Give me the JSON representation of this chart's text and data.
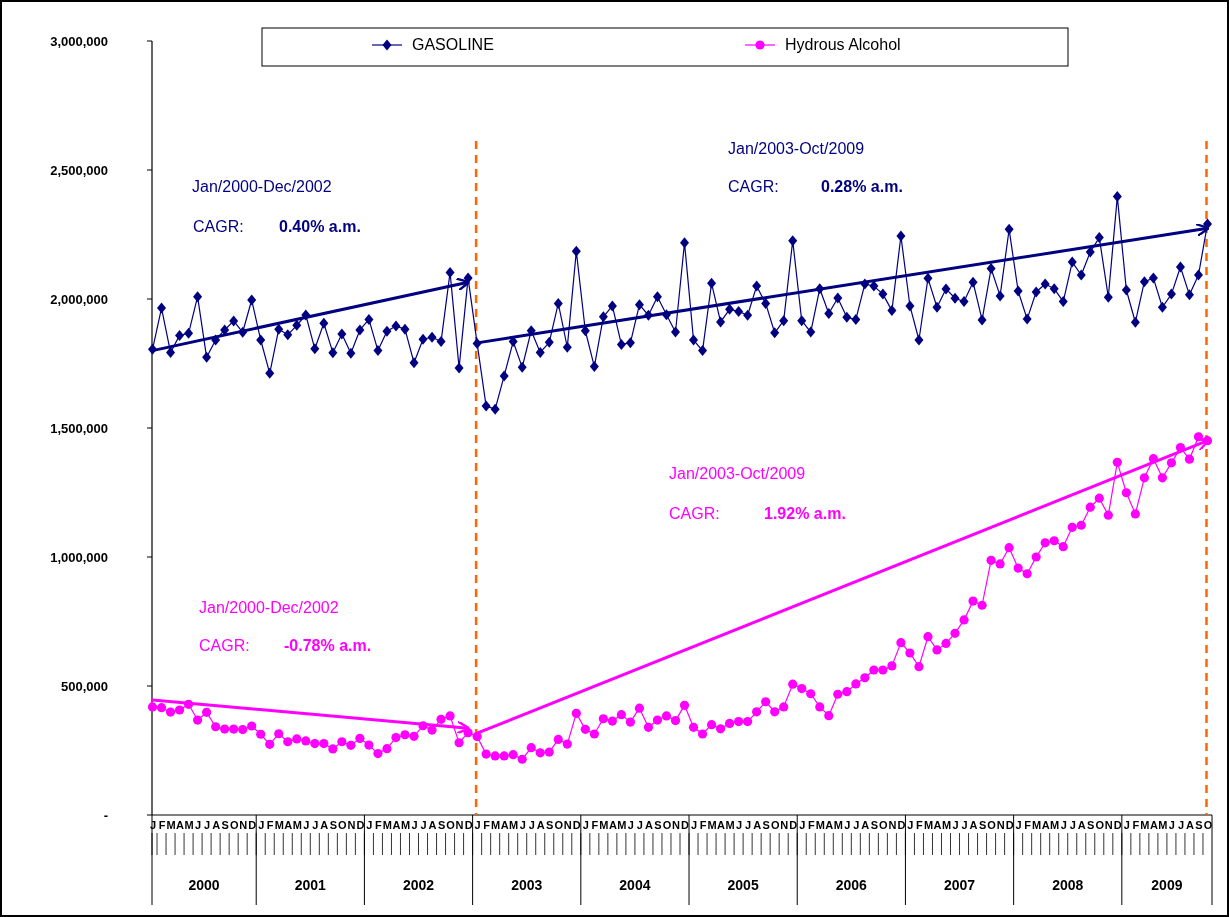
{
  "chart_data": {
    "type": "line",
    "categories": [
      "J",
      "F",
      "M",
      "A",
      "M",
      "J",
      "J",
      "A",
      "S",
      "O",
      "N",
      "D",
      "J",
      "F",
      "M",
      "A",
      "M",
      "J",
      "J",
      "A",
      "S",
      "O",
      "N",
      "D",
      "J",
      "F",
      "M",
      "A",
      "M",
      "J",
      "J",
      "A",
      "S",
      "O",
      "N",
      "D",
      "J",
      "F",
      "M",
      "A",
      "M",
      "J",
      "J",
      "A",
      "S",
      "O",
      "N",
      "D",
      "J",
      "F",
      "M",
      "A",
      "M",
      "J",
      "J",
      "A",
      "S",
      "O",
      "N",
      "D",
      "J",
      "F",
      "M",
      "A",
      "M",
      "J",
      "J",
      "A",
      "S",
      "O",
      "N",
      "D",
      "J",
      "F",
      "M",
      "A",
      "M",
      "J",
      "J",
      "A",
      "S",
      "O",
      "N",
      "D",
      "J",
      "F",
      "M",
      "A",
      "M",
      "J",
      "J",
      "A",
      "S",
      "O",
      "N",
      "D",
      "J",
      "F",
      "M",
      "A",
      "M",
      "J",
      "J",
      "A",
      "S",
      "O",
      "N",
      "D",
      "J",
      "F",
      "M",
      "A",
      "M",
      "J",
      "J",
      "A",
      "S",
      "O"
    ],
    "series": [
      {
        "name": "GASOLINE",
        "color": "#000080",
        "marker": "diamond",
        "values": [
          1805000,
          1965000,
          1793000,
          1859000,
          1867000,
          2009000,
          1774000,
          1841000,
          1880000,
          1915000,
          1871000,
          1996000,
          1841000,
          1712000,
          1883000,
          1861000,
          1898000,
          1938000,
          1807000,
          1906000,
          1792000,
          1864000,
          1790000,
          1880000,
          1921000,
          1800000,
          1875000,
          1895000,
          1883000,
          1753000,
          1844000,
          1852000,
          1835000,
          2103000,
          1733000,
          2081000,
          1828000,
          1585000,
          1573000,
          1702000,
          1835000,
          1735000,
          1877000,
          1793000,
          1832000,
          1983000,
          1813000,
          2185000,
          1877000,
          1738000,
          1931000,
          1973000,
          1824000,
          1830000,
          1978000,
          1937000,
          2009000,
          1939000,
          1872000,
          2218000,
          1841000,
          1800000,
          2061000,
          1911000,
          1960000,
          1952000,
          1937000,
          2050000,
          1983000,
          1869000,
          1916000,
          2226000,
          1916000,
          1872000,
          2040000,
          1944000,
          2004000,
          1929000,
          1921000,
          2058000,
          2050000,
          2019000,
          1955000,
          2244000,
          1973000,
          1841000,
          2080000,
          1968000,
          2039000,
          2003000,
          1990000,
          2065000,
          1919000,
          2118000,
          2012000,
          2270000,
          2031000,
          1922000,
          2027000,
          2058000,
          2040000,
          1990000,
          2143000,
          2093000,
          2182000,
          2238000,
          2007000,
          2397000,
          2035000,
          1910000,
          2067000,
          2081000,
          1968000,
          2019000,
          2124000,
          2016000,
          2093000,
          2291000
        ]
      },
      {
        "name": "Hydrous Alcohol",
        "color": "#ff00ff",
        "marker": "circle",
        "values": [
          419000,
          416000,
          399000,
          407000,
          429000,
          368000,
          398000,
          342000,
          333000,
          333000,
          331000,
          345000,
          313000,
          274000,
          315000,
          284000,
          295000,
          287000,
          277000,
          277000,
          256000,
          284000,
          270000,
          297000,
          271000,
          238000,
          257000,
          300000,
          311000,
          305000,
          346000,
          329000,
          371000,
          384000,
          280000,
          319000,
          304000,
          236000,
          229000,
          229000,
          234000,
          216000,
          261000,
          241000,
          244000,
          293000,
          275000,
          394000,
          332000,
          314000,
          373000,
          364000,
          389000,
          360000,
          414000,
          340000,
          368000,
          384000,
          366000,
          425000,
          340000,
          314000,
          350000,
          334000,
          355000,
          362000,
          362000,
          400000,
          439000,
          400000,
          419000,
          507000,
          490000,
          470000,
          419000,
          385000,
          468000,
          478000,
          508000,
          532000,
          562000,
          562000,
          578000,
          668000,
          628000,
          575000,
          691000,
          640000,
          665000,
          704000,
          756000,
          829000,
          813000,
          987000,
          973000,
          1036000,
          957000,
          935000,
          1000000,
          1055000,
          1063000,
          1040000,
          1115000,
          1123000,
          1193000,
          1228000,
          1162000,
          1367000,
          1249000,
          1167000,
          1307000,
          1381000,
          1307000,
          1365000,
          1424000,
          1379000,
          1466000,
          1451000
        ]
      },
      {
        "type": "line",
        "color": "#000080",
        "marker": "none",
        "values": [
          1800000,
          null,
          null,
          null,
          null,
          null,
          null,
          null,
          null,
          null,
          null,
          null,
          null,
          null,
          null,
          null,
          null,
          null,
          null,
          null,
          null,
          null,
          null,
          null,
          null,
          null,
          null,
          null,
          null,
          null,
          null,
          null,
          null,
          null,
          null,
          2065000,
          null,
          null,
          null,
          null,
          null,
          null,
          null,
          null,
          null,
          null,
          null,
          null,
          null,
          null,
          null,
          null,
          null,
          null,
          null,
          null,
          null,
          null,
          null,
          null,
          null,
          null,
          null,
          null,
          null,
          null,
          null,
          null,
          null,
          null,
          null,
          null,
          null,
          null,
          null,
          null,
          null,
          null,
          null,
          null,
          null,
          null,
          null,
          null,
          null,
          null,
          null,
          null,
          null,
          null,
          null,
          null,
          null,
          null,
          null,
          null,
          null,
          null,
          null,
          null,
          null,
          null,
          null,
          null,
          null,
          null,
          null,
          null,
          null,
          null,
          null,
          null,
          null,
          null,
          null,
          null,
          null,
          null
        ]
      },
      {
        "type": "line",
        "color": "#000080",
        "marker": "none",
        "values": [
          null,
          null,
          null,
          null,
          null,
          null,
          null,
          null,
          null,
          null,
          null,
          null,
          null,
          null,
          null,
          null,
          null,
          null,
          null,
          null,
          null,
          null,
          null,
          null,
          null,
          null,
          null,
          null,
          null,
          null,
          null,
          null,
          null,
          null,
          null,
          null,
          1830000,
          null,
          null,
          null,
          null,
          null,
          null,
          null,
          null,
          null,
          null,
          null,
          null,
          null,
          null,
          null,
          null,
          null,
          null,
          null,
          null,
          null,
          null,
          null,
          null,
          null,
          null,
          null,
          null,
          null,
          null,
          null,
          null,
          null,
          null,
          null,
          null,
          null,
          null,
          null,
          null,
          null,
          null,
          null,
          null,
          null,
          null,
          null,
          null,
          null,
          null,
          null,
          null,
          null,
          null,
          null,
          null,
          null,
          null,
          null,
          null,
          null,
          null,
          null,
          null,
          null,
          null,
          null,
          null,
          null,
          null,
          null,
          null,
          null,
          null,
          null,
          null,
          null,
          null,
          null,
          null,
          2274000
        ]
      },
      {
        "type": "line",
        "color": "#ff00ff",
        "marker": "none",
        "values": [
          446000,
          null,
          null,
          null,
          null,
          null,
          null,
          null,
          null,
          null,
          null,
          null,
          null,
          null,
          null,
          null,
          null,
          null,
          null,
          null,
          null,
          null,
          null,
          null,
          null,
          null,
          null,
          null,
          null,
          null,
          null,
          null,
          null,
          null,
          null,
          336000,
          null,
          null,
          null,
          null,
          null,
          null,
          null,
          null,
          null,
          null,
          null,
          null,
          null,
          null,
          null,
          null,
          null,
          null,
          null,
          null,
          null,
          null,
          null,
          null,
          null,
          null,
          null,
          null,
          null,
          null,
          null,
          null,
          null,
          null,
          null,
          null,
          null,
          null,
          null,
          null,
          null,
          null,
          null,
          null,
          null,
          null,
          null,
          null,
          null,
          null,
          null,
          null,
          null,
          null,
          null,
          null,
          null,
          null,
          null,
          null,
          null,
          null,
          null,
          null,
          null,
          null,
          null,
          null,
          null,
          null,
          null,
          null,
          null,
          null,
          null,
          null,
          null,
          null,
          null,
          null,
          null,
          null
        ]
      },
      {
        "type": "line",
        "color": "#ff00ff",
        "marker": "none",
        "values": [
          null,
          null,
          null,
          null,
          null,
          null,
          null,
          null,
          null,
          null,
          null,
          null,
          null,
          null,
          null,
          null,
          null,
          null,
          null,
          null,
          null,
          null,
          null,
          null,
          null,
          null,
          null,
          null,
          null,
          null,
          null,
          null,
          null,
          null,
          null,
          null,
          317000,
          null,
          null,
          null,
          null,
          null,
          null,
          null,
          null,
          null,
          null,
          null,
          null,
          null,
          null,
          null,
          null,
          null,
          null,
          null,
          null,
          null,
          null,
          null,
          null,
          null,
          null,
          null,
          null,
          null,
          null,
          null,
          null,
          null,
          null,
          null,
          null,
          null,
          null,
          null,
          null,
          null,
          null,
          null,
          null,
          null,
          null,
          null,
          null,
          null,
          null,
          null,
          null,
          null,
          null,
          null,
          null,
          null,
          null,
          null,
          null,
          null,
          null,
          null,
          null,
          null,
          null,
          null,
          null,
          null,
          null,
          null,
          null,
          null,
          null,
          null,
          null,
          null,
          null,
          null,
          null,
          1451000
        ]
      }
    ],
    "ylim": [
      0,
      3000000
    ],
    "yticks": [
      {
        "value": 0,
        "label": "-"
      },
      {
        "value": 500000,
        "label": "500,000"
      },
      {
        "value": 1000000,
        "label": "1,000,000"
      },
      {
        "value": 1500000,
        "label": "1,500,000"
      },
      {
        "value": 2000000,
        "label": "2,000,000"
      },
      {
        "value": 2500000,
        "label": "2,500,000"
      },
      {
        "value": 3000000,
        "label": "3,000,000"
      }
    ],
    "annotations": [
      "Jan/2000-Dec/2002",
      "CAGR:",
      "0.40% a.m.",
      "Jan/2003-Oct/2009",
      "CAGR:",
      "0.28% a.m.",
      "Jan/2003-Oct/2009",
      "CAGR:",
      "1.92% a.m.",
      "Jan/2000-Dec/2002",
      "CAGR:",
      "-0.78% a.m.",
      "2000",
      "2001",
      "2002",
      "2003",
      "2004",
      "2005",
      "2006",
      "2007",
      "2008",
      "2009"
    ],
    "legend": "top",
    "line_style": "solid"
  }
}
